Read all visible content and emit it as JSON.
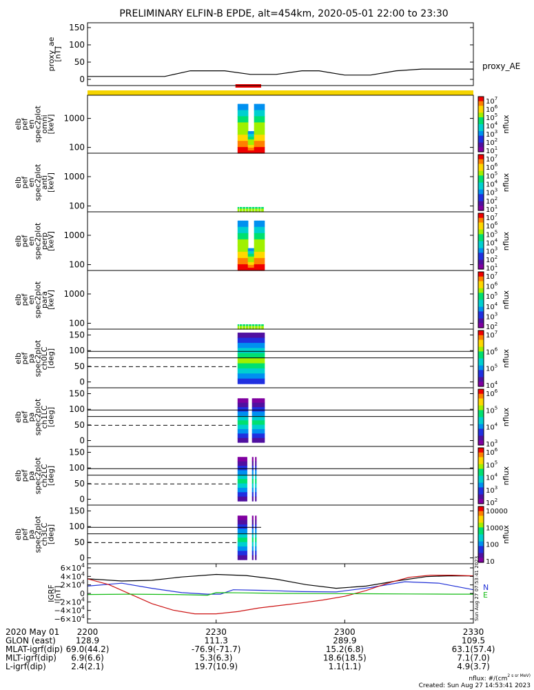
{
  "title": "PRELIMINARY ELFIN-B EPDE, alt=454km, 2020-05-01 22:00 to 23:30",
  "panels": [
    {
      "id": "proxy_ae",
      "ylabel": [
        "proxy_ae",
        "[nT]"
      ],
      "yticks": [
        "150",
        "100",
        "50",
        "0"
      ],
      "right_label": "proxy_AE"
    },
    {
      "id": "en_omni",
      "ylabel": [
        "elb",
        "pef",
        "en",
        "spec2plot",
        "omni",
        "[keV]"
      ],
      "yticks": [
        "1000",
        "100"
      ],
      "colorbar": {
        "ticks": [
          "10^7",
          "10^6",
          "10^5",
          "10^4",
          "10^3",
          "10^2",
          "10^1"
        ],
        "label": "nflux"
      }
    },
    {
      "id": "en_anti",
      "ylabel": [
        "elb",
        "pef",
        "en",
        "spec2plot",
        "anti",
        "[keV]"
      ],
      "yticks": [
        "1000",
        "100"
      ],
      "colorbar": {
        "ticks": [
          "10^7",
          "10^6",
          "10^5",
          "10^4",
          "10^3",
          "10^2",
          "10^1"
        ],
        "label": "nflux"
      }
    },
    {
      "id": "en_perp",
      "ylabel": [
        "elb",
        "pef",
        "en",
        "spec2plot",
        "perp",
        "[keV]"
      ],
      "yticks": [
        "1000",
        "100"
      ],
      "colorbar": {
        "ticks": [
          "10^7",
          "10^6",
          "10^5",
          "10^4",
          "10^3",
          "10^2",
          "10^1"
        ],
        "label": "nflux"
      }
    },
    {
      "id": "en_para",
      "ylabel": [
        "elb",
        "pef",
        "en",
        "spec2plot",
        "para",
        "[keV]"
      ],
      "yticks": [
        "1000",
        "100"
      ],
      "colorbar": {
        "ticks": [
          "10^7",
          "10^6",
          "10^5",
          "10^4",
          "10^3",
          "10^2"
        ],
        "label": "nflux"
      }
    },
    {
      "id": "pa_ch0",
      "ylabel": [
        "elb",
        "pef",
        "pa",
        "spec2plot",
        "ch0LC",
        "[deg]"
      ],
      "yticks": [
        "150",
        "100",
        "50",
        "0"
      ],
      "colorbar": {
        "ticks": [
          "10^7",
          "10^6",
          "10^5",
          "10^4"
        ],
        "label": "nflux"
      }
    },
    {
      "id": "pa_ch1",
      "ylabel": [
        "elb",
        "pef",
        "pa",
        "spec2plot",
        "ch1LC",
        "[deg]"
      ],
      "yticks": [
        "150",
        "100",
        "50",
        "0"
      ],
      "colorbar": {
        "ticks": [
          "10^6",
          "10^5",
          "10^4",
          "10^3"
        ],
        "label": "nflux"
      }
    },
    {
      "id": "pa_ch2",
      "ylabel": [
        "elb",
        "pef",
        "pa",
        "spec2plot",
        "ch2LC",
        "[deg]"
      ],
      "yticks": [
        "150",
        "100",
        "50",
        "0"
      ],
      "colorbar": {
        "ticks": [
          "10^6",
          "10^5",
          "10^4",
          "10^3",
          "10^2"
        ],
        "label": "nflux"
      }
    },
    {
      "id": "pa_ch3",
      "ylabel": [
        "elb",
        "pef",
        "pa",
        "spec2plot",
        "ch3LC",
        "[deg]"
      ],
      "yticks": [
        "150",
        "100",
        "50",
        "0"
      ],
      "colorbar": {
        "ticks": [
          "10000",
          "1000",
          "100",
          "10"
        ],
        "label": "nflux"
      }
    },
    {
      "id": "igrf",
      "ylabel": [
        "IGRF",
        "[nT]"
      ],
      "yticks": [
        "6×10^4",
        "4×10^4",
        "2×10^4",
        "0",
        "−2×10^4",
        "−4×10^4",
        "−6×10^4"
      ],
      "right_labels": [
        "N",
        "E"
      ],
      "side_stamp": "Sun Aug 27 07:53:41 2023"
    }
  ],
  "footer": {
    "rows": [
      {
        "label": "2020 May 01",
        "values": [
          "2200",
          "2230",
          "2300",
          "2330"
        ]
      },
      {
        "label": "GLON (east)",
        "values": [
          "128.9",
          "111.3",
          "289.9",
          "109.5"
        ]
      },
      {
        "label": "MLAT-igrf(dip)",
        "values": [
          "69.0(44.2)",
          "-76.9(-71.7)",
          "15.2(6.8)",
          "63.1(57.4)"
        ]
      },
      {
        "label": "MLT-igrf(dip)",
        "values": [
          "6.9(6.6)",
          "5.3(6.3)",
          "18.6(18.5)",
          "7.1(7.0)"
        ]
      },
      {
        "label": "L-igrf(dip)",
        "values": [
          "2.4(2.1)",
          "19.7(10.9)",
          "1.1(1.1)",
          "4.9(3.7)"
        ]
      }
    ],
    "units_note": "nflux: #/(cm^2 s sr MeV)",
    "created": "Created: Sun Aug 27 14:53:41 2023"
  },
  "chart_data": {
    "type": "line",
    "title": "PRELIMINARY ELFIN-B EPDE, alt=454km, 2020-05-01 22:00 to 23:30",
    "x_unit": "minutes after 22:00 UT",
    "xlim": [
      0,
      90
    ],
    "x_tick_labels": [
      "2200",
      "2230",
      "2300",
      "2330"
    ],
    "colors": {
      "proxy_ae": "#000000",
      "igrf_black": "#000000",
      "igrf_blue": "#1f2fd6",
      "igrf_red": "#cc1111",
      "igrf_green": "#11bb11",
      "status_bar": "#f5d400",
      "science_zone": "#ee0000"
    },
    "series": [
      {
        "name": "proxy_AE",
        "panel": "proxy_ae",
        "ylim": [
          0,
          150
        ],
        "x": [
          0,
          18,
          24,
          32,
          38,
          44,
          50,
          54,
          60,
          66,
          72,
          78,
          90
        ],
        "y": [
          12,
          12,
          28,
          28,
          18,
          18,
          28,
          28,
          16,
          16,
          28,
          33,
          33
        ]
      },
      {
        "panel": "igrf",
        "ylim": [
          -70000,
          70000
        ],
        "x": [
          0,
          8,
          15,
          22,
          30,
          37,
          44,
          51,
          58,
          65,
          72,
          79,
          84,
          90
        ],
        "y": [
          40000,
          34000,
          36000,
          45000,
          52000,
          49000,
          39000,
          24000,
          14000,
          20000,
          34000,
          46000,
          48000,
          48000
        ]
      },
      {
        "panel": "igrf",
        "ylim": [
          -70000,
          70000
        ],
        "x": [
          0,
          8,
          15,
          22,
          28,
          31,
          34,
          42,
          50,
          58,
          66,
          74,
          82,
          90
        ],
        "y": [
          20000,
          28000,
          14000,
          2000,
          -2000,
          -2000,
          10000,
          8000,
          5000,
          4000,
          16000,
          32000,
          28000,
          10000
        ]
      },
      {
        "panel": "igrf",
        "ylim": [
          -70000,
          70000
        ],
        "x": [
          0,
          5,
          10,
          15,
          20,
          25,
          30,
          35,
          40,
          45,
          50,
          55,
          60,
          65,
          70,
          75,
          80,
          85,
          90
        ],
        "y": [
          40000,
          24000,
          -2000,
          -28000,
          -46000,
          -56000,
          -56000,
          -50000,
          -40000,
          -33000,
          -26000,
          -18000,
          -8000,
          8000,
          28000,
          44000,
          50000,
          50000,
          48000
        ]
      },
      {
        "panel": "igrf",
        "ylim": [
          -70000,
          70000
        ],
        "x": [
          0,
          10,
          20,
          28,
          30,
          36,
          45,
          55,
          65,
          75,
          85,
          90
        ],
        "y": [
          -3000,
          -2000,
          -3000,
          -5000,
          2000,
          1500,
          0,
          -500,
          -1000,
          -1500,
          -2000,
          -2000
        ]
      }
    ],
    "panel_ylims": {
      "proxy_ae": [
        0,
        150
      ],
      "energy_keV": [
        60,
        7000
      ],
      "pitch_angle_deg": [
        0,
        180
      ],
      "igrf_nT": [
        -70000,
        70000
      ]
    }
  }
}
